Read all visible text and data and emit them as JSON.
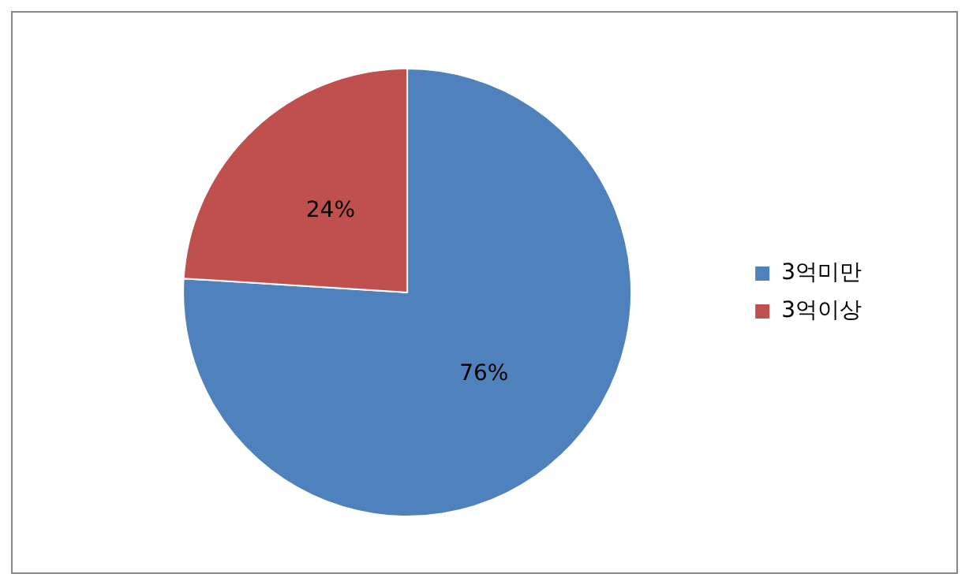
{
  "chart_data": {
    "type": "pie",
    "categories": [
      "3억미만",
      "3억이상"
    ],
    "values": [
      76,
      24
    ],
    "colors": [
      "#4f81bd",
      "#c0504d"
    ],
    "value_labels": [
      "76%",
      "24%"
    ],
    "legend": "right"
  }
}
